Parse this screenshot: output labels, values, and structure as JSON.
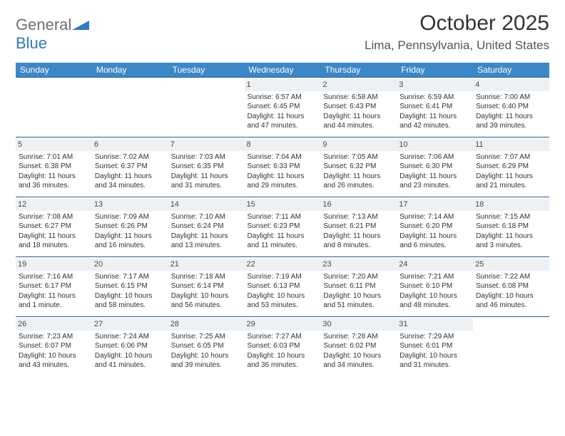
{
  "brand": {
    "part1": "General",
    "part2": "Blue"
  },
  "title": "October 2025",
  "location": "Lima, Pennsylvania, United States",
  "colors": {
    "header_bg": "#3b87c8",
    "header_text": "#ffffff",
    "cell_border": "#2b5d8a",
    "daynum_bg": "#eef1f4",
    "brand_gray": "#707070",
    "brand_blue": "#2f7bbf",
    "page_bg": "#ffffff",
    "text": "#333333"
  },
  "day_headers": [
    "Sunday",
    "Monday",
    "Tuesday",
    "Wednesday",
    "Thursday",
    "Friday",
    "Saturday"
  ],
  "weeks": [
    [
      {
        "day": "",
        "sunrise": "",
        "sunset": "",
        "daylight": ""
      },
      {
        "day": "",
        "sunrise": "",
        "sunset": "",
        "daylight": ""
      },
      {
        "day": "",
        "sunrise": "",
        "sunset": "",
        "daylight": ""
      },
      {
        "day": "1",
        "sunrise": "Sunrise: 6:57 AM",
        "sunset": "Sunset: 6:45 PM",
        "daylight": "Daylight: 11 hours and 47 minutes."
      },
      {
        "day": "2",
        "sunrise": "Sunrise: 6:58 AM",
        "sunset": "Sunset: 6:43 PM",
        "daylight": "Daylight: 11 hours and 44 minutes."
      },
      {
        "day": "3",
        "sunrise": "Sunrise: 6:59 AM",
        "sunset": "Sunset: 6:41 PM",
        "daylight": "Daylight: 11 hours and 42 minutes."
      },
      {
        "day": "4",
        "sunrise": "Sunrise: 7:00 AM",
        "sunset": "Sunset: 6:40 PM",
        "daylight": "Daylight: 11 hours and 39 minutes."
      }
    ],
    [
      {
        "day": "5",
        "sunrise": "Sunrise: 7:01 AM",
        "sunset": "Sunset: 6:38 PM",
        "daylight": "Daylight: 11 hours and 36 minutes."
      },
      {
        "day": "6",
        "sunrise": "Sunrise: 7:02 AM",
        "sunset": "Sunset: 6:37 PM",
        "daylight": "Daylight: 11 hours and 34 minutes."
      },
      {
        "day": "7",
        "sunrise": "Sunrise: 7:03 AM",
        "sunset": "Sunset: 6:35 PM",
        "daylight": "Daylight: 11 hours and 31 minutes."
      },
      {
        "day": "8",
        "sunrise": "Sunrise: 7:04 AM",
        "sunset": "Sunset: 6:33 PM",
        "daylight": "Daylight: 11 hours and 29 minutes."
      },
      {
        "day": "9",
        "sunrise": "Sunrise: 7:05 AM",
        "sunset": "Sunset: 6:32 PM",
        "daylight": "Daylight: 11 hours and 26 minutes."
      },
      {
        "day": "10",
        "sunrise": "Sunrise: 7:06 AM",
        "sunset": "Sunset: 6:30 PM",
        "daylight": "Daylight: 11 hours and 23 minutes."
      },
      {
        "day": "11",
        "sunrise": "Sunrise: 7:07 AM",
        "sunset": "Sunset: 6:29 PM",
        "daylight": "Daylight: 11 hours and 21 minutes."
      }
    ],
    [
      {
        "day": "12",
        "sunrise": "Sunrise: 7:08 AM",
        "sunset": "Sunset: 6:27 PM",
        "daylight": "Daylight: 11 hours and 18 minutes."
      },
      {
        "day": "13",
        "sunrise": "Sunrise: 7:09 AM",
        "sunset": "Sunset: 6:26 PM",
        "daylight": "Daylight: 11 hours and 16 minutes."
      },
      {
        "day": "14",
        "sunrise": "Sunrise: 7:10 AM",
        "sunset": "Sunset: 6:24 PM",
        "daylight": "Daylight: 11 hours and 13 minutes."
      },
      {
        "day": "15",
        "sunrise": "Sunrise: 7:11 AM",
        "sunset": "Sunset: 6:23 PM",
        "daylight": "Daylight: 11 hours and 11 minutes."
      },
      {
        "day": "16",
        "sunrise": "Sunrise: 7:13 AM",
        "sunset": "Sunset: 6:21 PM",
        "daylight": "Daylight: 11 hours and 8 minutes."
      },
      {
        "day": "17",
        "sunrise": "Sunrise: 7:14 AM",
        "sunset": "Sunset: 6:20 PM",
        "daylight": "Daylight: 11 hours and 6 minutes."
      },
      {
        "day": "18",
        "sunrise": "Sunrise: 7:15 AM",
        "sunset": "Sunset: 6:18 PM",
        "daylight": "Daylight: 11 hours and 3 minutes."
      }
    ],
    [
      {
        "day": "19",
        "sunrise": "Sunrise: 7:16 AM",
        "sunset": "Sunset: 6:17 PM",
        "daylight": "Daylight: 11 hours and 1 minute."
      },
      {
        "day": "20",
        "sunrise": "Sunrise: 7:17 AM",
        "sunset": "Sunset: 6:15 PM",
        "daylight": "Daylight: 10 hours and 58 minutes."
      },
      {
        "day": "21",
        "sunrise": "Sunrise: 7:18 AM",
        "sunset": "Sunset: 6:14 PM",
        "daylight": "Daylight: 10 hours and 56 minutes."
      },
      {
        "day": "22",
        "sunrise": "Sunrise: 7:19 AM",
        "sunset": "Sunset: 6:13 PM",
        "daylight": "Daylight: 10 hours and 53 minutes."
      },
      {
        "day": "23",
        "sunrise": "Sunrise: 7:20 AM",
        "sunset": "Sunset: 6:11 PM",
        "daylight": "Daylight: 10 hours and 51 minutes."
      },
      {
        "day": "24",
        "sunrise": "Sunrise: 7:21 AM",
        "sunset": "Sunset: 6:10 PM",
        "daylight": "Daylight: 10 hours and 48 minutes."
      },
      {
        "day": "25",
        "sunrise": "Sunrise: 7:22 AM",
        "sunset": "Sunset: 6:08 PM",
        "daylight": "Daylight: 10 hours and 46 minutes."
      }
    ],
    [
      {
        "day": "26",
        "sunrise": "Sunrise: 7:23 AM",
        "sunset": "Sunset: 6:07 PM",
        "daylight": "Daylight: 10 hours and 43 minutes."
      },
      {
        "day": "27",
        "sunrise": "Sunrise: 7:24 AM",
        "sunset": "Sunset: 6:06 PM",
        "daylight": "Daylight: 10 hours and 41 minutes."
      },
      {
        "day": "28",
        "sunrise": "Sunrise: 7:25 AM",
        "sunset": "Sunset: 6:05 PM",
        "daylight": "Daylight: 10 hours and 39 minutes."
      },
      {
        "day": "29",
        "sunrise": "Sunrise: 7:27 AM",
        "sunset": "Sunset: 6:03 PM",
        "daylight": "Daylight: 10 hours and 36 minutes."
      },
      {
        "day": "30",
        "sunrise": "Sunrise: 7:28 AM",
        "sunset": "Sunset: 6:02 PM",
        "daylight": "Daylight: 10 hours and 34 minutes."
      },
      {
        "day": "31",
        "sunrise": "Sunrise: 7:29 AM",
        "sunset": "Sunset: 6:01 PM",
        "daylight": "Daylight: 10 hours and 31 minutes."
      },
      {
        "day": "",
        "sunrise": "",
        "sunset": "",
        "daylight": ""
      }
    ]
  ]
}
